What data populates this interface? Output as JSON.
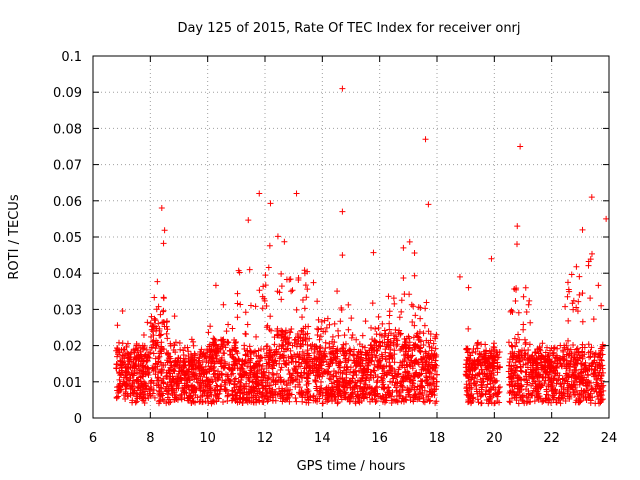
{
  "chart_data": {
    "type": "scatter",
    "title": "Day 125 of 2015, Rate Of TEC Index for receiver onrj",
    "xlabel": "GPS time / hours",
    "ylabel": "ROTI / TECUs",
    "xlim": [
      6,
      24
    ],
    "ylim": [
      0,
      0.1
    ],
    "xticks": [
      6,
      8,
      10,
      12,
      14,
      16,
      18,
      20,
      22,
      24
    ],
    "xtick_labels": [
      "6",
      "8",
      "10",
      "12",
      "14",
      "16",
      "18",
      "20",
      "22",
      "24"
    ],
    "yticks": [
      0,
      0.01,
      0.02,
      0.03,
      0.04,
      0.05,
      0.06,
      0.07,
      0.08,
      0.09,
      0.1
    ],
    "ytick_labels": [
      "0",
      "0.01",
      "0.02",
      "0.03",
      "0.04",
      "0.05",
      "0.06",
      "0.07",
      "0.08",
      "0.09",
      "0.1"
    ],
    "grid": true,
    "marker": "+",
    "color": "#ff0000",
    "series": [
      {
        "name": "ROTI",
        "outliers": [
          {
            "x": 14.7,
            "y": 0.091
          },
          {
            "x": 17.6,
            "y": 0.077
          },
          {
            "x": 20.9,
            "y": 0.075
          },
          {
            "x": 23.4,
            "y": 0.061
          },
          {
            "x": 11.8,
            "y": 0.062
          },
          {
            "x": 13.1,
            "y": 0.062
          },
          {
            "x": 14.7,
            "y": 0.057
          },
          {
            "x": 8.4,
            "y": 0.058
          },
          {
            "x": 17.7,
            "y": 0.059
          },
          {
            "x": 23.9,
            "y": 0.055
          },
          {
            "x": 20.8,
            "y": 0.053
          },
          {
            "x": 14.7,
            "y": 0.045
          },
          {
            "x": 19.9,
            "y": 0.044
          },
          {
            "x": 18.8,
            "y": 0.039
          },
          {
            "x": 19.1,
            "y": 0.036
          }
        ],
        "segments": [
          {
            "x_start": 6.8,
            "x_end": 8.0,
            "base": 0.012,
            "peak": 0.03
          },
          {
            "x_start": 8.0,
            "x_end": 8.6,
            "base": 0.018,
            "peak": 0.055
          },
          {
            "x_start": 8.6,
            "x_end": 10.0,
            "base": 0.011,
            "peak": 0.03
          },
          {
            "x_start": 10.0,
            "x_end": 11.0,
            "base": 0.013,
            "peak": 0.037
          },
          {
            "x_start": 11.0,
            "x_end": 12.4,
            "base": 0.012,
            "peak": 0.06
          },
          {
            "x_start": 12.4,
            "x_end": 13.5,
            "base": 0.015,
            "peak": 0.058
          },
          {
            "x_start": 13.5,
            "x_end": 15.7,
            "base": 0.012,
            "peak": 0.04
          },
          {
            "x_start": 15.7,
            "x_end": 17.8,
            "base": 0.014,
            "peak": 0.05
          },
          {
            "x_start": 17.8,
            "x_end": 18.0,
            "base": 0.012,
            "peak": 0.038
          },
          {
            "x_start": 19.0,
            "x_end": 20.2,
            "base": 0.011,
            "peak": 0.03
          },
          {
            "x_start": 20.5,
            "x_end": 21.3,
            "base": 0.012,
            "peak": 0.052
          },
          {
            "x_start": 21.3,
            "x_end": 22.4,
            "base": 0.012,
            "peak": 0.025
          },
          {
            "x_start": 22.4,
            "x_end": 23.8,
            "base": 0.012,
            "peak": 0.052
          }
        ]
      }
    ]
  }
}
